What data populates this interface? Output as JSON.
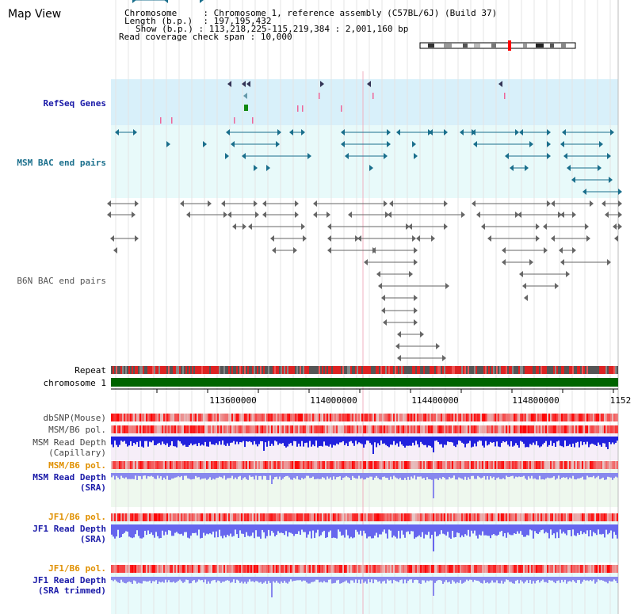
{
  "title": "Map View",
  "header": {
    "chromosome_label": "Chromosome",
    "chromosome_value": "Chromosome 1, reference assembly (C57BL/6J) (Build 37)",
    "length_label": "Length (b.p.)",
    "length_value": "197,195,432",
    "show_label": "Show (b.p.)",
    "show_value": "113,218,225-115,219,384 : 2,001,160 bp",
    "coverage_label": "Read coverage check span",
    "coverage_value": "10,000"
  },
  "tracks": {
    "refseq": "RefSeq Genes",
    "msm_bac": "MSM BAC end pairs",
    "b6n_bac": "B6N BAC end pairs",
    "repeat": "Repeat",
    "chromosome": "chromosome 1",
    "dbsnp": "dbSNP(Mouse)",
    "msm_b6_pol_1": "MSM/B6 pol.",
    "msm_depth_cap_1": "MSM Read Depth",
    "msm_depth_cap_2": "(Capillary)",
    "msm_b6_pol_2": "MSM/B6 pol.",
    "msm_depth_sra_1": "MSM Read Depth",
    "msm_depth_sra_2": "(SRA)",
    "jf1_b6_pol_1": "JF1/B6 pol.",
    "jf1_depth_sra_1": "JF1 Read Depth",
    "jf1_depth_sra_2": "(SRA)",
    "jf1_b6_pol_2": "JF1/B6 pol.",
    "jf1_depth_trim_1": "JF1 Read Depth",
    "jf1_depth_trim_2": "(SRA trimmed)"
  },
  "axis_ticks": [
    "113600000",
    "114000000",
    "114400000",
    "114800000",
    "1152"
  ],
  "colors": {
    "refseq_bg": "#d8f0fa",
    "msm_bac_bg": "#e8fafa",
    "msm_feature": "#1a6f8c",
    "b6n_feature": "#666666",
    "chromosome_bar": "#006400",
    "cap_depth": "#2222dd",
    "sra_depth": "#8888ee",
    "sra_bg": "#eef8ee",
    "jf1_bg": "#e8fbfb",
    "label_blue": "#1a1aa8",
    "label_orange": "#e09000"
  }
}
